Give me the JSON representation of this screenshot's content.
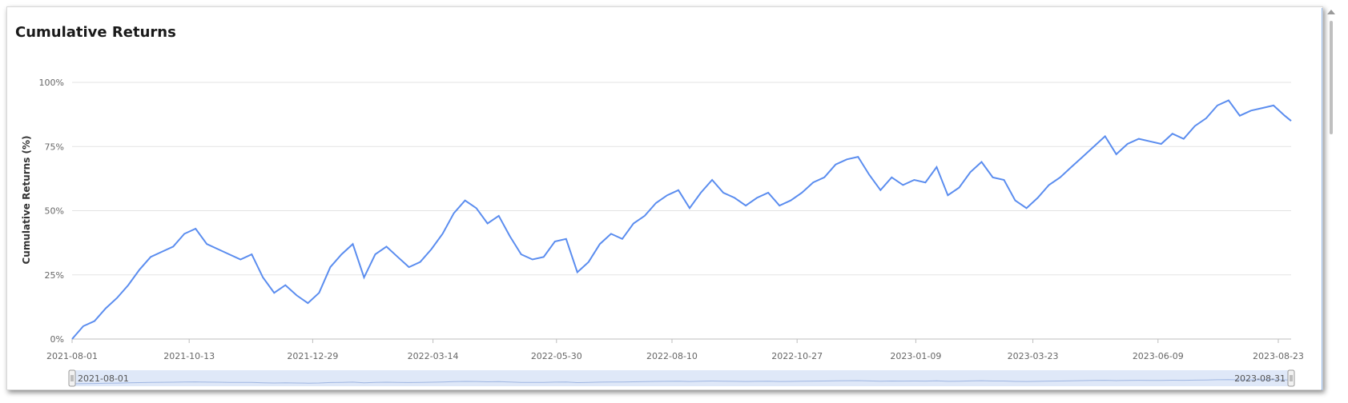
{
  "chart_title": "Cumulative Returns",
  "chart_data": {
    "type": "line",
    "title": "Cumulative Returns",
    "xlabel": "",
    "ylabel": "Cumulative Returns (%)",
    "ylim": [
      0,
      100
    ],
    "y_ticks": [
      "0%",
      "25%",
      "50%",
      "75%",
      "100%"
    ],
    "x_ticks": [
      "2021-08-01",
      "2021-10-13",
      "2021-12-29",
      "2022-03-14",
      "2022-05-30",
      "2022-08-10",
      "2022-10-27",
      "2023-01-09",
      "2023-03-23",
      "2023-06-09",
      "2023-08-23"
    ],
    "grid": true,
    "line_color": "#5b8def",
    "series": [
      {
        "x": [
          "2021-08-01",
          "2021-08-08",
          "2021-08-15",
          "2021-08-22",
          "2021-08-29",
          "2021-09-05",
          "2021-09-12",
          "2021-09-19",
          "2021-09-26",
          "2021-10-03",
          "2021-10-10",
          "2021-10-17",
          "2021-10-24",
          "2021-10-31",
          "2021-11-07",
          "2021-11-14",
          "2021-11-21",
          "2021-11-28",
          "2021-12-05",
          "2021-12-12",
          "2021-12-19",
          "2021-12-26",
          "2022-01-02",
          "2022-01-09",
          "2022-01-16",
          "2022-01-23",
          "2022-01-30",
          "2022-02-06",
          "2022-02-13",
          "2022-02-20",
          "2022-02-27",
          "2022-03-06",
          "2022-03-13",
          "2022-03-20",
          "2022-03-27",
          "2022-04-03",
          "2022-04-10",
          "2022-04-17",
          "2022-04-24",
          "2022-05-01",
          "2022-05-08",
          "2022-05-15",
          "2022-05-22",
          "2022-05-29",
          "2022-06-05",
          "2022-06-12",
          "2022-06-19",
          "2022-06-26",
          "2022-07-03",
          "2022-07-10",
          "2022-07-17",
          "2022-07-24",
          "2022-07-31",
          "2022-08-07",
          "2022-08-14",
          "2022-08-21",
          "2022-08-28",
          "2022-09-04",
          "2022-09-11",
          "2022-09-18",
          "2022-09-25",
          "2022-10-02",
          "2022-10-09",
          "2022-10-16",
          "2022-10-23",
          "2022-10-30",
          "2022-11-06",
          "2022-11-13",
          "2022-11-20",
          "2022-11-27",
          "2022-12-04",
          "2022-12-11",
          "2022-12-18",
          "2022-12-25",
          "2023-01-01",
          "2023-01-08",
          "2023-01-15",
          "2023-01-22",
          "2023-01-29",
          "2023-02-05",
          "2023-02-12",
          "2023-02-19",
          "2023-02-26",
          "2023-03-05",
          "2023-03-12",
          "2023-03-19",
          "2023-03-26",
          "2023-04-02",
          "2023-04-09",
          "2023-04-16",
          "2023-04-23",
          "2023-04-30",
          "2023-05-07",
          "2023-05-14",
          "2023-05-21",
          "2023-05-28",
          "2023-06-04",
          "2023-06-11",
          "2023-06-18",
          "2023-06-25",
          "2023-07-02",
          "2023-07-09",
          "2023-07-16",
          "2023-07-23",
          "2023-07-30",
          "2023-08-06",
          "2023-08-13",
          "2023-08-20",
          "2023-08-27",
          "2023-08-31"
        ],
        "y": [
          0,
          5,
          7,
          12,
          16,
          21,
          27,
          32,
          34,
          36,
          41,
          43,
          37,
          35,
          33,
          31,
          33,
          24,
          18,
          21,
          17,
          14,
          18,
          28,
          33,
          37,
          24,
          33,
          36,
          32,
          28,
          30,
          35,
          41,
          49,
          54,
          51,
          45,
          48,
          40,
          33,
          31,
          32,
          38,
          39,
          26,
          30,
          37,
          41,
          39,
          45,
          48,
          53,
          56,
          58,
          51,
          57,
          62,
          57,
          55,
          52,
          55,
          57,
          52,
          54,
          57,
          61,
          63,
          68,
          70,
          71,
          64,
          58,
          63,
          60,
          62,
          61,
          67,
          56,
          59,
          65,
          69,
          63,
          62,
          54,
          51,
          55,
          60,
          63,
          67,
          71,
          75,
          79,
          72,
          76,
          78,
          77,
          76,
          80,
          78,
          83,
          86,
          91,
          93,
          87,
          89,
          90,
          91,
          87,
          85
        ]
      }
    ],
    "navigator": {
      "start": "2021-08-01",
      "end": "2023-08-31"
    }
  }
}
